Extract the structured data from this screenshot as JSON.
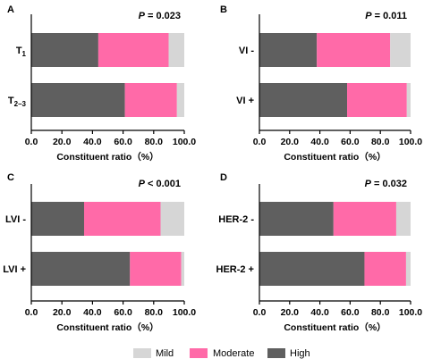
{
  "legend": {
    "items": [
      {
        "label": "Mild",
        "color": "#d6d6d6"
      },
      {
        "label": "Moderate",
        "color": "#ff6aa8"
      },
      {
        "label": "High",
        "color": "#5f5f5f"
      }
    ]
  },
  "chart_data": [
    {
      "type": "bar",
      "orientation": "horizontal",
      "stacked": true,
      "panel": "A",
      "p_label": "P",
      "p_value": "= 0.023",
      "categories": [
        "T1",
        "T2–3"
      ],
      "category_main": [
        "T",
        "T"
      ],
      "category_sub": [
        "1",
        "2–3"
      ],
      "series": [
        {
          "name": "High",
          "color": "#5f5f5f",
          "values": [
            43.8,
            61.2
          ]
        },
        {
          "name": "Moderate",
          "color": "#ff6aa8",
          "values": [
            46.0,
            34.0
          ]
        },
        {
          "name": "Mild",
          "color": "#d6d6d6",
          "values": [
            10.2,
            4.8
          ]
        }
      ],
      "xlabel": "Constituent ratio（%）",
      "xlim": [
        0,
        100
      ],
      "ticks": [
        0,
        20,
        40,
        60,
        80,
        100
      ],
      "tick_labels": [
        "0.0",
        "20.0",
        "40.0",
        "60.0",
        "80.0",
        "100.0"
      ]
    },
    {
      "type": "bar",
      "orientation": "horizontal",
      "stacked": true,
      "panel": "B",
      "p_label": "P",
      "p_value": "= 0.011",
      "categories": [
        "VI -",
        "VI +"
      ],
      "category_main": [
        "VI -",
        "VI +"
      ],
      "category_sub": [
        "",
        ""
      ],
      "series": [
        {
          "name": "High",
          "color": "#5f5f5f",
          "values": [
            38.0,
            58.0
          ]
        },
        {
          "name": "Moderate",
          "color": "#ff6aa8",
          "values": [
            48.5,
            39.5
          ]
        },
        {
          "name": "Mild",
          "color": "#d6d6d6",
          "values": [
            13.5,
            2.5
          ]
        }
      ],
      "xlabel": "Constituent ratio（%）",
      "xlim": [
        0,
        100
      ],
      "ticks": [
        0,
        20,
        40,
        60,
        80,
        100
      ],
      "tick_labels": [
        "0.0",
        "20.0",
        "40.0",
        "60.0",
        "80.0",
        "100.0"
      ]
    },
    {
      "type": "bar",
      "orientation": "horizontal",
      "stacked": true,
      "panel": "C",
      "p_label": "P",
      "p_value": "< 0.001",
      "categories": [
        "LVI -",
        "LVI +"
      ],
      "category_main": [
        "LVI -",
        "LVI +"
      ],
      "category_sub": [
        "",
        ""
      ],
      "series": [
        {
          "name": "High",
          "color": "#5f5f5f",
          "values": [
            34.5,
            64.5
          ]
        },
        {
          "name": "Moderate",
          "color": "#ff6aa8",
          "values": [
            50.0,
            33.5
          ]
        },
        {
          "name": "Mild",
          "color": "#d6d6d6",
          "values": [
            15.5,
            2.0
          ]
        }
      ],
      "xlabel": "Constituent ratio（%）",
      "xlim": [
        0,
        100
      ],
      "ticks": [
        0,
        20,
        40,
        60,
        80,
        100
      ],
      "tick_labels": [
        "0.0",
        "20.0",
        "40.0",
        "60.0",
        "80.0",
        "100.0"
      ]
    },
    {
      "type": "bar",
      "orientation": "horizontal",
      "stacked": true,
      "panel": "D",
      "p_label": "P",
      "p_value": "= 0.032",
      "categories": [
        "HER-2 -",
        "HER-2 +"
      ],
      "category_main": [
        "HER-2 -",
        "HER-2 +"
      ],
      "category_sub": [
        "",
        ""
      ],
      "series": [
        {
          "name": "High",
          "color": "#5f5f5f",
          "values": [
            49.0,
            69.5
          ]
        },
        {
          "name": "Moderate",
          "color": "#ff6aa8",
          "values": [
            41.5,
            27.5
          ]
        },
        {
          "name": "Mild",
          "color": "#d6d6d6",
          "values": [
            9.5,
            3.0
          ]
        }
      ],
      "xlabel": "Constituent ratio（%）",
      "xlim": [
        0,
        100
      ],
      "ticks": [
        0,
        20,
        40,
        60,
        80,
        100
      ],
      "tick_labels": [
        "0.0",
        "20.0",
        "40.0",
        "60.0",
        "80.0",
        "100.0"
      ]
    }
  ]
}
